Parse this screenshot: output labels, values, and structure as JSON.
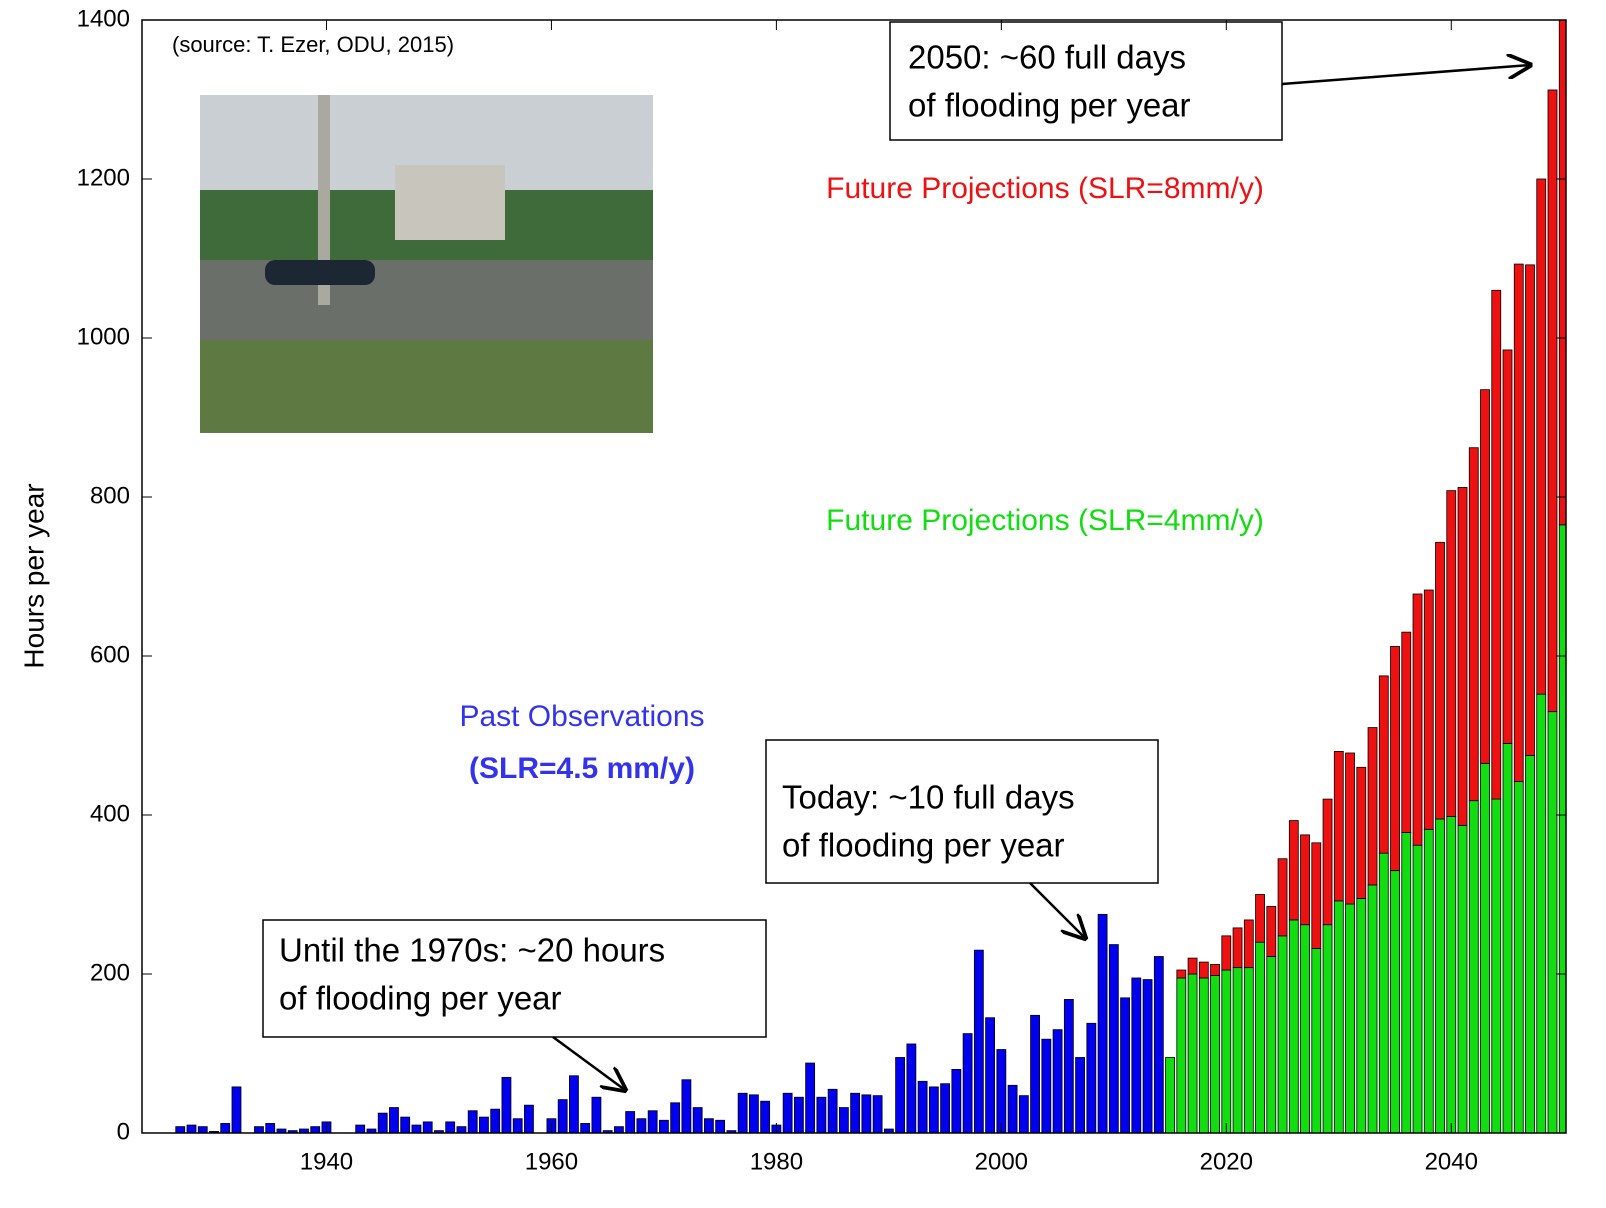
{
  "chart_data": {
    "type": "bar",
    "ylabel": "Hours per year",
    "source": "(source: T. Ezer, ODU, 2015)",
    "x": [
      1927,
      1928,
      1929,
      1930,
      1931,
      1932,
      1933,
      1934,
      1935,
      1936,
      1937,
      1938,
      1939,
      1940,
      1941,
      1942,
      1943,
      1944,
      1945,
      1946,
      1947,
      1948,
      1949,
      1950,
      1951,
      1952,
      1953,
      1954,
      1955,
      1956,
      1957,
      1958,
      1959,
      1960,
      1961,
      1962,
      1963,
      1964,
      1965,
      1966,
      1967,
      1968,
      1969,
      1970,
      1971,
      1972,
      1973,
      1974,
      1975,
      1976,
      1977,
      1978,
      1979,
      1980,
      1981,
      1982,
      1983,
      1984,
      1985,
      1986,
      1987,
      1988,
      1989,
      1990,
      1991,
      1992,
      1993,
      1994,
      1995,
      1996,
      1997,
      1998,
      1999,
      2000,
      2001,
      2002,
      2003,
      2004,
      2005,
      2006,
      2007,
      2008,
      2009,
      2010,
      2011,
      2012,
      2013,
      2014,
      2015,
      2016,
      2017,
      2018,
      2019,
      2020,
      2021,
      2022,
      2023,
      2024,
      2025,
      2026,
      2027,
      2028,
      2029,
      2030,
      2031,
      2032,
      2033,
      2034,
      2035,
      2036,
      2037,
      2038,
      2039,
      2040,
      2041,
      2042,
      2043,
      2044,
      2045,
      2046,
      2047,
      2048,
      2049,
      2050
    ],
    "series": [
      {
        "name": "Past Observations",
        "name_detail": "(SLR=4.5 mm/y)",
        "color": "#0000ee",
        "values": [
          8,
          10,
          8,
          2,
          12,
          58,
          0,
          8,
          12,
          5,
          3,
          5,
          8,
          14,
          0,
          0,
          10,
          5,
          25,
          32,
          20,
          10,
          14,
          3,
          14,
          8,
          28,
          20,
          30,
          70,
          18,
          35,
          0,
          18,
          42,
          72,
          12,
          45,
          3,
          8,
          27,
          18,
          28,
          16,
          38,
          67,
          32,
          18,
          16,
          3,
          50,
          48,
          40,
          10,
          50,
          45,
          88,
          45,
          55,
          32,
          50,
          48,
          47,
          5,
          95,
          112,
          65,
          58,
          62,
          80,
          125,
          230,
          145,
          105,
          60,
          47,
          148,
          118,
          130,
          168,
          95,
          138,
          275,
          237,
          170,
          195,
          193,
          222,
          null,
          null,
          null,
          null,
          null,
          null,
          null,
          null,
          null,
          null,
          null,
          null,
          null,
          null,
          null,
          null,
          null,
          null,
          null,
          null,
          null,
          null,
          null,
          null,
          null,
          null,
          null,
          null,
          null,
          null,
          null,
          null,
          null,
          null,
          null,
          null
        ]
      },
      {
        "name": "Future Projections (SLR=4mm/y)",
        "color": "#11dd11",
        "values": [
          null,
          null,
          null,
          null,
          null,
          null,
          null,
          null,
          null,
          null,
          null,
          null,
          null,
          null,
          null,
          null,
          null,
          null,
          null,
          null,
          null,
          null,
          null,
          null,
          null,
          null,
          null,
          null,
          null,
          null,
          null,
          null,
          null,
          null,
          null,
          null,
          null,
          null,
          null,
          null,
          null,
          null,
          null,
          null,
          null,
          null,
          null,
          null,
          null,
          null,
          null,
          null,
          null,
          null,
          null,
          null,
          null,
          null,
          null,
          null,
          null,
          null,
          null,
          null,
          null,
          null,
          null,
          null,
          null,
          null,
          null,
          null,
          null,
          null,
          null,
          null,
          null,
          null,
          null,
          null,
          null,
          null,
          null,
          null,
          null,
          null,
          null,
          null,
          95,
          195,
          200,
          195,
          198,
          205,
          208,
          208,
          240,
          222,
          248,
          268,
          262,
          232,
          262,
          292,
          288,
          295,
          312,
          352,
          330,
          378,
          362,
          382,
          395,
          398,
          387,
          418,
          465,
          420,
          490,
          442,
          475,
          552,
          530,
          765
        ]
      },
      {
        "name": "Future Projections (SLR=8mm/y)",
        "color": "#ee1111",
        "values": [
          null,
          null,
          null,
          null,
          null,
          null,
          null,
          null,
          null,
          null,
          null,
          null,
          null,
          null,
          null,
          null,
          null,
          null,
          null,
          null,
          null,
          null,
          null,
          null,
          null,
          null,
          null,
          null,
          null,
          null,
          null,
          null,
          null,
          null,
          null,
          null,
          null,
          null,
          null,
          null,
          null,
          null,
          null,
          null,
          null,
          null,
          null,
          null,
          null,
          null,
          null,
          null,
          null,
          null,
          null,
          null,
          null,
          null,
          null,
          null,
          null,
          null,
          null,
          null,
          null,
          null,
          null,
          null,
          null,
          null,
          null,
          null,
          null,
          null,
          null,
          null,
          null,
          null,
          null,
          null,
          null,
          null,
          null,
          null,
          null,
          null,
          null,
          null,
          0,
          10,
          20,
          20,
          14,
          43,
          50,
          60,
          60,
          63,
          97,
          125,
          113,
          133,
          158,
          188,
          190,
          165,
          198,
          223,
          282,
          252,
          316,
          301,
          348,
          410,
          425,
          444,
          470,
          640,
          495,
          651,
          617,
          648,
          782,
          640
        ]
      }
    ],
    "stacked": true,
    "xlim": [
      1923.6,
      2050.2
    ],
    "xticks": [
      1940,
      1960,
      1980,
      2000,
      2020,
      2040
    ],
    "ylim": [
      0,
      1400
    ],
    "yticks": [
      0,
      200,
      400,
      600,
      800,
      1000,
      1200,
      1400
    ],
    "annotations": [
      {
        "lines": [
          "2050: ~60 full days",
          "of flooding per year"
        ]
      },
      {
        "lines": [
          "Today: ~10 full days",
          "of flooding per year"
        ]
      },
      {
        "lines": [
          "Until the 1970s: ~20 hours",
          "of flooding per year"
        ]
      }
    ]
  }
}
